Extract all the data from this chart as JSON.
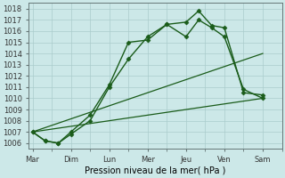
{
  "xlabel": "Pression niveau de la mer( hPa )",
  "background_color": "#cce8e8",
  "grid_color": "#aacccc",
  "line_color": "#1a5c1a",
  "x_ticks_labels": [
    "Mar",
    "Dim",
    "Lun",
    "Mer",
    "Jeu",
    "Ven",
    "Sam"
  ],
  "x_tick_positions": [
    0,
    1,
    2,
    3,
    4,
    5,
    6
  ],
  "ylim": [
    1005.5,
    1018.5
  ],
  "yticks": [
    1006,
    1007,
    1008,
    1009,
    1010,
    1011,
    1012,
    1013,
    1014,
    1015,
    1016,
    1017,
    1018
  ],
  "xlim": [
    -0.1,
    6.5
  ],
  "series": [
    {
      "x": [
        0,
        0.33,
        0.67,
        1.0,
        1.5,
        2.0,
        2.5,
        3.0,
        3.5,
        4.0,
        4.33,
        4.67,
        5.0,
        5.5,
        6.0
      ],
      "y": [
        1007.0,
        1006.2,
        1006.0,
        1006.8,
        1008.0,
        1011.0,
        1013.5,
        1015.5,
        1016.6,
        1016.8,
        1017.8,
        1016.5,
        1016.3,
        1010.5,
        1010.3
      ],
      "marker": "D",
      "markersize": 2.5,
      "linewidth": 1.0
    },
    {
      "x": [
        0,
        0.33,
        0.67,
        1.0,
        1.5,
        2.0,
        2.5,
        3.0,
        3.5,
        4.0,
        4.33,
        4.67,
        5.0,
        5.5,
        6.0
      ],
      "y": [
        1007.0,
        1006.2,
        1006.0,
        1007.0,
        1008.5,
        1011.2,
        1015.0,
        1015.2,
        1016.6,
        1015.5,
        1017.0,
        1016.3,
        1015.5,
        1010.8,
        1010.0
      ],
      "marker": "D",
      "markersize": 2.5,
      "linewidth": 1.0
    },
    {
      "x": [
        0,
        6.0
      ],
      "y": [
        1007.0,
        1014.0
      ],
      "marker": null,
      "markersize": 0,
      "linewidth": 0.9
    },
    {
      "x": [
        0,
        6.0
      ],
      "y": [
        1007.0,
        1010.0
      ],
      "marker": null,
      "markersize": 0,
      "linewidth": 0.9
    }
  ]
}
